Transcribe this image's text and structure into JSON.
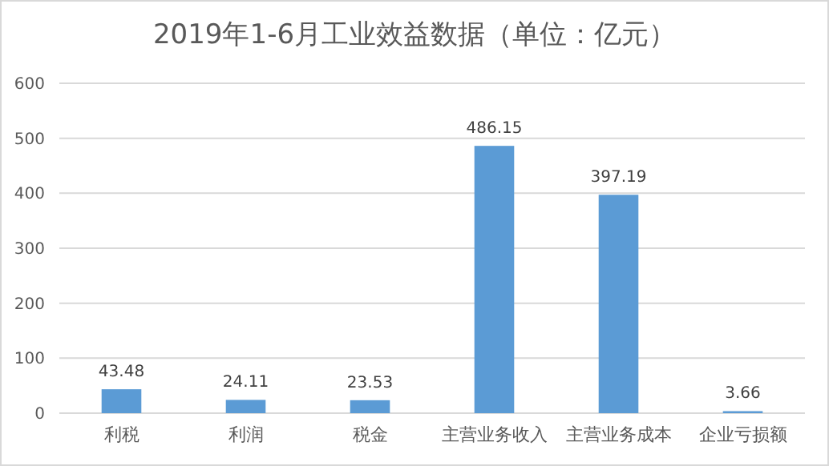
{
  "chart_data": {
    "type": "bar",
    "title": "2019年1-6月工业效益数据（单位：亿元）",
    "categories": [
      "利税",
      "利润",
      "税金",
      "主营业务收入",
      "主营业务成本",
      "企业亏损额"
    ],
    "values": [
      43.48,
      24.11,
      23.53,
      486.15,
      397.19,
      3.66
    ],
    "color": "#5b9bd5",
    "ylim": [
      0,
      600
    ],
    "yticks": [
      0,
      100,
      200,
      300,
      400,
      500,
      600
    ],
    "grid": "y",
    "data_labels": true
  }
}
